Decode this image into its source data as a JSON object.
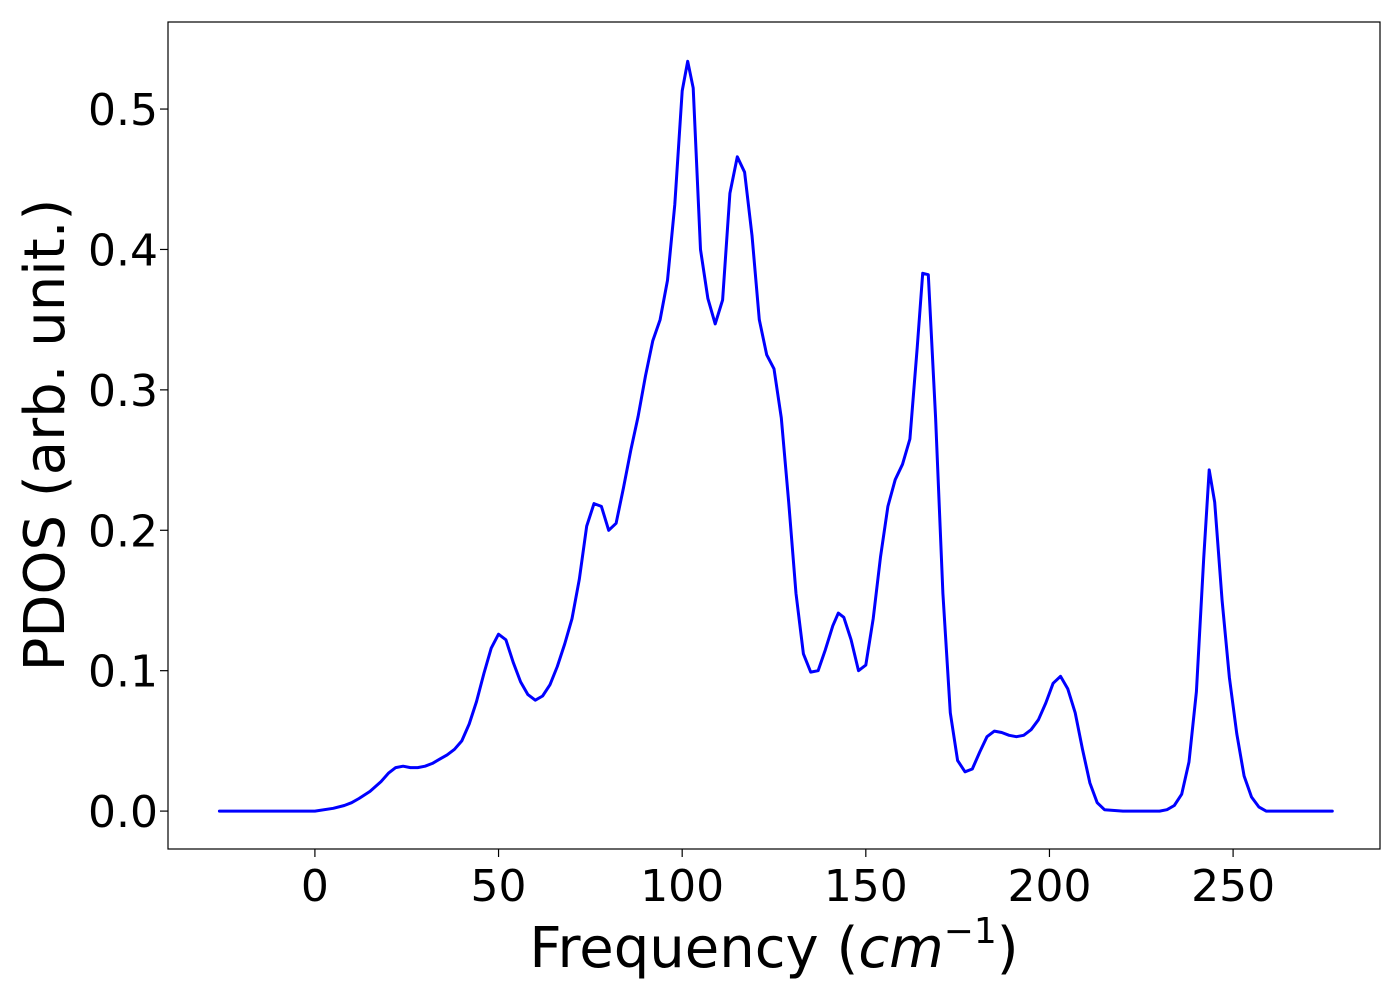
{
  "chart_data": {
    "type": "line",
    "title": "",
    "xlabel": "Frequency (",
    "xlabel_math": "cm",
    "xlabel_sup": "−1",
    "xlabel_close": ")",
    "ylabel": "PDOS (arb. unit.)",
    "xlim": [
      -40,
      290
    ],
    "ylim": [
      -0.027,
      0.562
    ],
    "xticks": [
      0,
      50,
      100,
      150,
      200,
      250
    ],
    "xtick_labels": [
      "0",
      "50",
      "100",
      "150",
      "200",
      "250"
    ],
    "yticks": [
      0.0,
      0.1,
      0.2,
      0.3,
      0.4,
      0.5
    ],
    "ytick_labels": [
      "0.0",
      "0.1",
      "0.2",
      "0.3",
      "0.4",
      "0.5"
    ],
    "grid": false,
    "line_color": "#0000ff",
    "series": [
      {
        "x": [
          -26,
          -20,
          -10,
          0,
          5,
          8,
          10,
          12,
          15,
          18,
          20,
          22,
          24,
          26,
          28,
          30,
          32,
          34,
          36,
          38,
          40,
          42,
          44,
          46,
          48,
          50,
          52,
          54,
          56,
          58,
          60,
          62,
          64,
          66,
          68,
          70,
          72,
          74,
          76,
          78,
          80,
          82,
          84,
          86,
          88,
          90,
          92,
          94,
          96,
          98,
          100,
          101.5,
          103,
          105,
          107,
          109,
          111,
          113,
          115,
          117,
          119,
          121,
          123,
          125,
          127,
          129,
          131,
          133,
          135,
          137,
          139,
          141,
          142.5,
          144,
          146,
          148,
          150,
          152,
          154,
          156,
          158,
          160,
          162,
          164,
          165.5,
          167,
          169,
          171,
          173,
          175,
          177,
          179,
          181,
          183,
          185,
          187,
          189,
          191,
          193,
          195,
          197,
          199,
          201,
          203,
          205,
          207,
          209,
          211,
          213,
          215,
          220,
          225,
          230,
          232,
          234,
          236,
          238,
          240,
          242,
          243.5,
          245,
          247,
          249,
          251,
          253,
          255,
          257,
          259,
          265,
          270,
          277
        ],
        "y": [
          0.0,
          0.0,
          0.0,
          0.0,
          0.002,
          0.004,
          0.006,
          0.009,
          0.014,
          0.021,
          0.027,
          0.031,
          0.032,
          0.031,
          0.031,
          0.032,
          0.034,
          0.037,
          0.04,
          0.044,
          0.05,
          0.062,
          0.078,
          0.098,
          0.116,
          0.126,
          0.122,
          0.106,
          0.092,
          0.083,
          0.079,
          0.082,
          0.09,
          0.103,
          0.119,
          0.137,
          0.165,
          0.203,
          0.219,
          0.217,
          0.2,
          0.205,
          0.23,
          0.257,
          0.281,
          0.31,
          0.335,
          0.35,
          0.378,
          0.432,
          0.513,
          0.534,
          0.515,
          0.4,
          0.365,
          0.347,
          0.364,
          0.44,
          0.466,
          0.455,
          0.41,
          0.35,
          0.325,
          0.315,
          0.28,
          0.22,
          0.155,
          0.112,
          0.099,
          0.1,
          0.115,
          0.132,
          0.141,
          0.138,
          0.122,
          0.1,
          0.104,
          0.137,
          0.181,
          0.217,
          0.236,
          0.247,
          0.265,
          0.33,
          0.383,
          0.382,
          0.28,
          0.155,
          0.07,
          0.036,
          0.028,
          0.03,
          0.042,
          0.053,
          0.057,
          0.056,
          0.054,
          0.053,
          0.054,
          0.058,
          0.065,
          0.077,
          0.091,
          0.096,
          0.087,
          0.07,
          0.044,
          0.02,
          0.006,
          0.001,
          0.0,
          0.0,
          0.0,
          0.001,
          0.004,
          0.012,
          0.035,
          0.085,
          0.18,
          0.243,
          0.22,
          0.15,
          0.095,
          0.055,
          0.025,
          0.01,
          0.003,
          0.0,
          0.0,
          0.0,
          0.0
        ]
      }
    ]
  }
}
